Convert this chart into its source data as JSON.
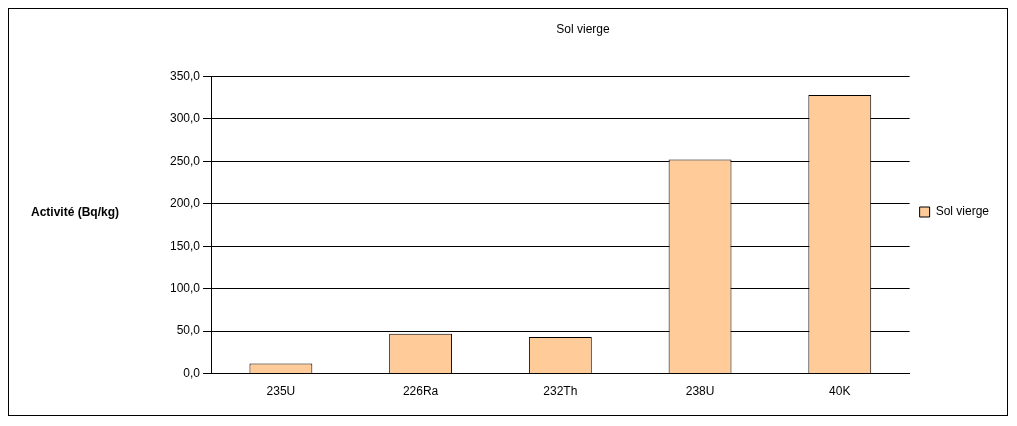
{
  "chart_data": {
    "type": "bar",
    "title": "Sol vierge",
    "ylabel": "Activité (Bq/kg)",
    "categories": [
      "235U",
      "226Ra",
      "232Th",
      "238U",
      "40K"
    ],
    "series": [
      {
        "name": "Sol vierge",
        "color": "#ffcc99",
        "values": [
          12,
          47,
          43,
          252,
          328
        ]
      }
    ],
    "ylim": [
      0,
      350
    ],
    "yticks": [
      {
        "value": 0,
        "label": "0,0"
      },
      {
        "value": 50,
        "label": "50,0"
      },
      {
        "value": 100,
        "label": "100,0"
      },
      {
        "value": 150,
        "label": "150,0"
      },
      {
        "value": 200,
        "label": "200,0"
      },
      {
        "value": 250,
        "label": "250,0"
      },
      {
        "value": 300,
        "label": "300,0"
      },
      {
        "value": 350,
        "label": "350,0"
      }
    ],
    "grid": "y",
    "legend": "right"
  }
}
